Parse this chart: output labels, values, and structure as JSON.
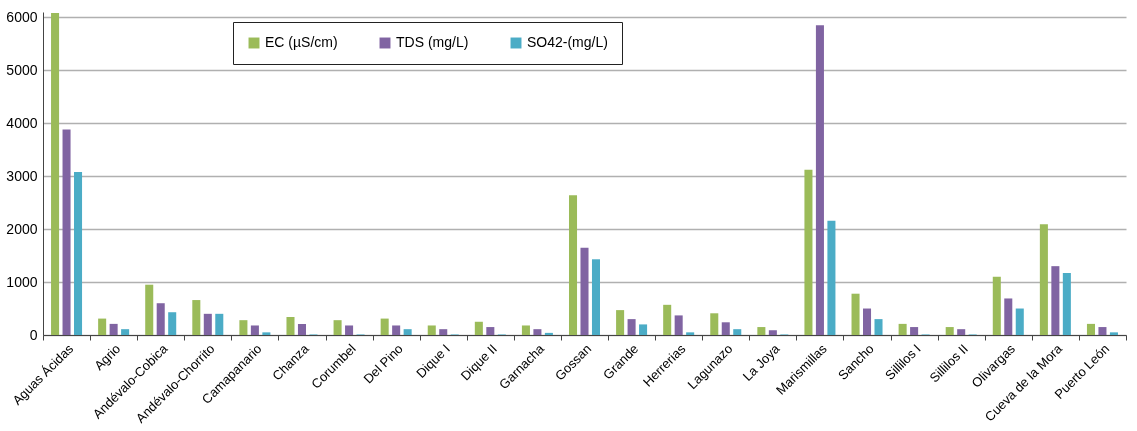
{
  "chart_data": {
    "type": "bar",
    "categories": [
      "Aguas Ácidas",
      "Agrio",
      "Andévalo-Cobica",
      "Andévalo-Chorrito",
      "Camapanario",
      "Chanza",
      "Corumbel",
      "Del Pino",
      "Dique I",
      "Dique II",
      "Garnacha",
      "Gossan",
      "Grande",
      "Herrerias",
      "Lagunazo",
      "La Joya",
      "Marismillas",
      "Sancho",
      "Sillilos I",
      "Sillilos II",
      "Olivargas",
      "Cueva de la Mora",
      "Puerto León"
    ],
    "series": [
      {
        "name": "EC (µS/cm)",
        "color": "#9bbb59",
        "values": [
          6080,
          310,
          950,
          660,
          280,
          340,
          280,
          310,
          180,
          250,
          180,
          2640,
          470,
          570,
          410,
          150,
          3120,
          780,
          210,
          150,
          1100,
          2090,
          210
        ]
      },
      {
        "name": "TDS (mg/L)",
        "color": "#8064a2",
        "values": [
          3880,
          210,
          600,
          400,
          180,
          210,
          180,
          180,
          110,
          150,
          110,
          1650,
          300,
          370,
          240,
          90,
          5850,
          500,
          150,
          110,
          690,
          1300,
          150
        ]
      },
      {
        "name": "SO42-(mg/L)",
        "color": "#4bacc6",
        "values": [
          3080,
          110,
          430,
          400,
          50,
          10,
          10,
          110,
          10,
          10,
          40,
          1430,
          200,
          50,
          110,
          10,
          2160,
          300,
          10,
          10,
          500,
          1170,
          50
        ]
      }
    ],
    "ylim": [
      0,
      6100
    ],
    "yticks": [
      0,
      1000,
      2000,
      3000,
      4000,
      5000,
      6000
    ],
    "grid": "y",
    "legend": "top"
  }
}
